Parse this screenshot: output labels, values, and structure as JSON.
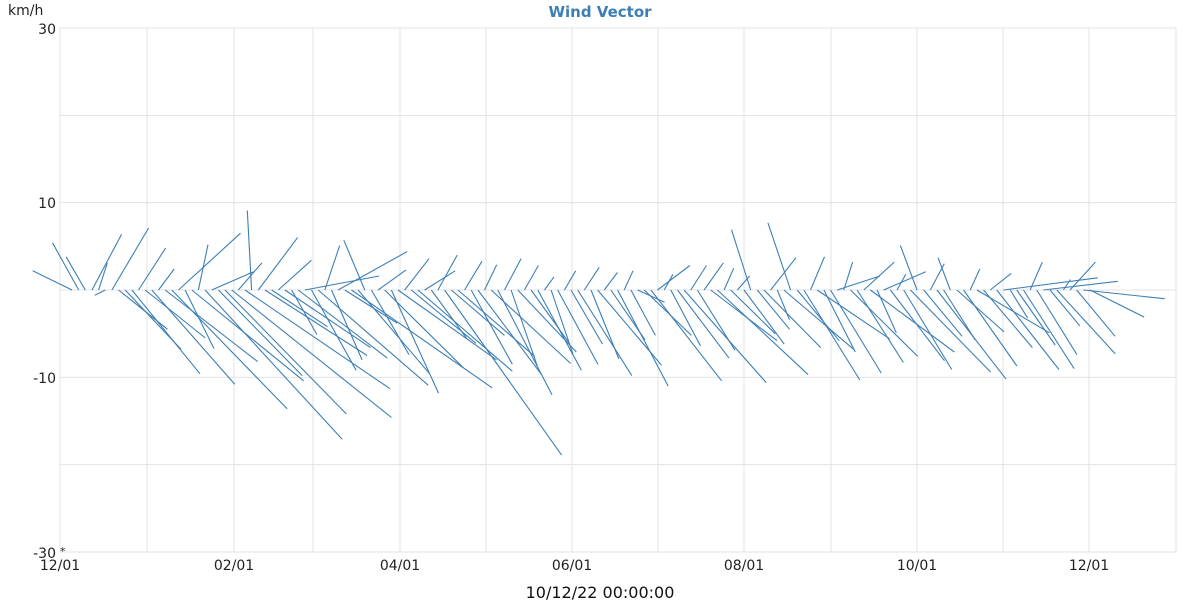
{
  "chart_data": {
    "type": "vector",
    "title": "Wind Vector",
    "ylabel": "km/h",
    "ylim": [
      -30,
      30
    ],
    "y_ticks": [
      "30",
      "10",
      "-10",
      "-30"
    ],
    "x_tick_labels": [
      "12/01",
      "02/01",
      "04/01",
      "06/01",
      "08/01",
      "10/01",
      "12/01"
    ],
    "origin_marker": "*",
    "footer_timestamp": "10/12/22 00:00:00",
    "grid": true,
    "series": [
      {
        "color": "#3d7fb5",
        "vectors": [
          {
            "x": 0,
            "u": -4.5,
            "v": 2.2
          },
          {
            "x": 1,
            "u": -3.0,
            "v": 5.4
          },
          {
            "x": 2,
            "u": -2.2,
            "v": 3.8
          },
          {
            "x": 3,
            "u": 3.4,
            "v": 6.4
          },
          {
            "x": 4,
            "u": 1.0,
            "v": 3.1
          },
          {
            "x": 5,
            "u": -1.2,
            "v": -0.6
          },
          {
            "x": 6,
            "u": 4.2,
            "v": 7.1
          },
          {
            "x": 7,
            "u": 5.6,
            "v": -4.5
          },
          {
            "x": 8,
            "u": 6.4,
            "v": -6.8
          },
          {
            "x": 9,
            "u": 7.8,
            "v": -9.6
          },
          {
            "x": 10,
            "u": 3.1,
            "v": 4.8
          },
          {
            "x": 11,
            "u": 6.9,
            "v": -5.5
          },
          {
            "x": 12,
            "u": 9.5,
            "v": -10.8
          },
          {
            "x": 13,
            "u": 1.8,
            "v": 2.4
          },
          {
            "x": 14,
            "u": 10.6,
            "v": -8.2
          },
          {
            "x": 15,
            "u": 13.2,
            "v": -13.6
          },
          {
            "x": 16,
            "u": 7.1,
            "v": 6.5
          },
          {
            "x": 17,
            "u": 3.3,
            "v": -6.7
          },
          {
            "x": 18,
            "u": 12.8,
            "v": -10.4
          },
          {
            "x": 19,
            "u": 1.1,
            "v": 5.2
          },
          {
            "x": 20,
            "u": 15.7,
            "v": -17.1
          },
          {
            "x": 21,
            "u": 4.8,
            "v": 2.1
          },
          {
            "x": 22,
            "u": 9.6,
            "v": -9.8
          },
          {
            "x": 23,
            "u": 13.9,
            "v": -14.2
          },
          {
            "x": 24,
            "u": 18.3,
            "v": -14.6
          },
          {
            "x": 25,
            "u": 2.7,
            "v": 3.1
          },
          {
            "x": 26,
            "u": 16.6,
            "v": -11.3
          },
          {
            "x": 27,
            "u": -0.5,
            "v": 9.1
          },
          {
            "x": 28,
            "u": 4.5,
            "v": 6.0
          },
          {
            "x": 29,
            "u": 11.7,
            "v": -7.5
          },
          {
            "x": 30,
            "u": 6.4,
            "v": -4.2
          },
          {
            "x": 31,
            "u": 3.8,
            "v": 3.4
          },
          {
            "x": 32,
            "u": 9.8,
            "v": -6.6
          },
          {
            "x": 33,
            "u": 2.9,
            "v": -5.1
          },
          {
            "x": 34,
            "u": 10.2,
            "v": -7.8
          },
          {
            "x": 35,
            "u": 8.5,
            "v": 1.6
          },
          {
            "x": 36,
            "u": 5.1,
            "v": -9.2
          },
          {
            "x": 37,
            "u": 12.6,
            "v": -10.9
          },
          {
            "x": 38,
            "u": 1.7,
            "v": 5.1
          },
          {
            "x": 39,
            "u": 3.5,
            "v": -8.0
          },
          {
            "x": 40,
            "u": 7.9,
            "v": 4.4
          },
          {
            "x": 41,
            "u": 6.0,
            "v": -3.8
          },
          {
            "x": 42,
            "u": 16.1,
            "v": -11.2
          },
          {
            "x": 43,
            "u": 8.2,
            "v": -9.6
          },
          {
            "x": 44,
            "u": -2.4,
            "v": 5.7
          },
          {
            "x": 45,
            "u": 4.3,
            "v": -7.4
          },
          {
            "x": 46,
            "u": 3.2,
            "v": 2.3
          },
          {
            "x": 47,
            "u": 9.0,
            "v": -8.9
          },
          {
            "x": 48,
            "u": 5.4,
            "v": -11.8
          },
          {
            "x": 49,
            "u": 11.3,
            "v": -8.0
          },
          {
            "x": 50,
            "u": 2.8,
            "v": 3.6
          },
          {
            "x": 51,
            "u": 7.4,
            "v": -6.1
          },
          {
            "x": 52,
            "u": 10.8,
            "v": -9.3
          },
          {
            "x": 53,
            "u": 3.5,
            "v": 2.2
          },
          {
            "x": 54,
            "u": 4.1,
            "v": -5.6
          },
          {
            "x": 55,
            "u": 2.2,
            "v": 4.0
          },
          {
            "x": 56,
            "u": 13.4,
            "v": -18.9
          },
          {
            "x": 57,
            "u": 6.1,
            "v": -5.2
          },
          {
            "x": 58,
            "u": 8.8,
            "v": -7.6
          },
          {
            "x": 59,
            "u": 2.0,
            "v": 3.3
          },
          {
            "x": 60,
            "u": 4.7,
            "v": -8.5
          },
          {
            "x": 61,
            "u": 7.3,
            "v": -9.7
          },
          {
            "x": 62,
            "u": 1.4,
            "v": 2.9
          },
          {
            "x": 63,
            "u": 9.1,
            "v": -8.4
          },
          {
            "x": 64,
            "u": 6.2,
            "v": -12.0
          },
          {
            "x": 65,
            "u": 1.9,
            "v": 3.6
          },
          {
            "x": 66,
            "u": 3.0,
            "v": -8.7
          },
          {
            "x": 67,
            "u": 6.7,
            "v": -7.1
          },
          {
            "x": 68,
            "u": 1.6,
            "v": 2.8
          },
          {
            "x": 69,
            "u": 4.3,
            "v": -6.0
          },
          {
            "x": 70,
            "u": 5.0,
            "v": -9.2
          },
          {
            "x": 71,
            "u": 1.1,
            "v": 1.5
          },
          {
            "x": 72,
            "u": 2.5,
            "v": -7.3
          },
          {
            "x": 73,
            "u": 4.6,
            "v": -8.5
          },
          {
            "x": 74,
            "u": 1.3,
            "v": 2.2
          },
          {
            "x": 75,
            "u": 3.6,
            "v": -6.2
          },
          {
            "x": 76,
            "u": 6.2,
            "v": -9.8
          },
          {
            "x": 77,
            "u": 1.7,
            "v": 2.6
          },
          {
            "x": 78,
            "u": 3.2,
            "v": -7.9
          },
          {
            "x": 79,
            "u": 7.3,
            "v": -8.6
          },
          {
            "x": 80,
            "u": 1.5,
            "v": 2.0
          },
          {
            "x": 81,
            "u": 3.9,
            "v": -5.7
          },
          {
            "x": 82,
            "u": 5.8,
            "v": -11.0
          },
          {
            "x": 83,
            "u": 1.0,
            "v": 2.2
          },
          {
            "x": 84,
            "u": 2.8,
            "v": -5.2
          },
          {
            "x": 85,
            "u": 3.1,
            "v": -1.4
          },
          {
            "x": 86,
            "u": 5.4,
            "v": -5.2
          },
          {
            "x": 87,
            "u": 8.1,
            "v": -10.4
          },
          {
            "x": 88,
            "u": 3.7,
            "v": 2.8
          },
          {
            "x": 89,
            "u": 1.0,
            "v": 1.8
          },
          {
            "x": 90,
            "u": 3.4,
            "v": -6.4
          },
          {
            "x": 91,
            "u": 5.9,
            "v": -7.8
          },
          {
            "x": 92,
            "u": 9.4,
            "v": -10.6
          },
          {
            "x": 93,
            "u": 1.8,
            "v": 2.8
          },
          {
            "x": 94,
            "u": 4.3,
            "v": -6.9
          },
          {
            "x": 95,
            "u": 2.2,
            "v": 3.1
          },
          {
            "x": 96,
            "u": 7.6,
            "v": -5.8
          },
          {
            "x": 97,
            "u": 10.4,
            "v": -9.7
          },
          {
            "x": 98,
            "u": 1.1,
            "v": 2.5
          },
          {
            "x": 99,
            "u": 5.1,
            "v": -5.0
          },
          {
            "x": 100,
            "u": 1.4,
            "v": 1.6
          },
          {
            "x": 101,
            "u": 4.6,
            "v": -6.2
          },
          {
            "x": 102,
            "u": -2.2,
            "v": 6.9
          },
          {
            "x": 103,
            "u": 3.7,
            "v": -4.5
          },
          {
            "x": 104,
            "u": 6.5,
            "v": -6.6
          },
          {
            "x": 105,
            "u": 2.9,
            "v": 3.7
          },
          {
            "x": 106,
            "u": 1.4,
            "v": -3.4
          },
          {
            "x": 107,
            "u": 8.0,
            "v": -6.8
          },
          {
            "x": 108,
            "u": -2.6,
            "v": 7.7
          },
          {
            "x": 109,
            "u": 4.8,
            "v": -5.8
          },
          {
            "x": 110,
            "u": 6.4,
            "v": -10.3
          },
          {
            "x": 111,
            "u": 1.6,
            "v": 3.8
          },
          {
            "x": 112,
            "u": 8.3,
            "v": -5.6
          },
          {
            "x": 113,
            "u": 3.6,
            "v": -7.1
          },
          {
            "x": 114,
            "u": 5.8,
            "v": -9.5
          },
          {
            "x": 115,
            "u": 4.9,
            "v": 1.6
          },
          {
            "x": 116,
            "u": 1.0,
            "v": 3.2
          },
          {
            "x": 117,
            "u": 7.7,
            "v": -7.6
          },
          {
            "x": 118,
            "u": 5.3,
            "v": -8.3
          },
          {
            "x": 119,
            "u": 3.5,
            "v": 3.2
          },
          {
            "x": 120,
            "u": 9.6,
            "v": -7.1
          },
          {
            "x": 121,
            "u": 2.2,
            "v": -4.9
          },
          {
            "x": 122,
            "u": 4.8,
            "v": 2.1
          },
          {
            "x": 123,
            "u": 6.2,
            "v": -8.1
          },
          {
            "x": 124,
            "u": 1.0,
            "v": 1.8
          },
          {
            "x": 125,
            "u": 5.5,
            "v": -9.1
          },
          {
            "x": 126,
            "u": 9.2,
            "v": -9.4
          },
          {
            "x": 127,
            "u": -1.9,
            "v": 5.1
          },
          {
            "x": 128,
            "u": 4.4,
            "v": -5.3
          },
          {
            "x": 129,
            "u": 1.6,
            "v": 3.0
          },
          {
            "x": 130,
            "u": 7.9,
            "v": -10.2
          },
          {
            "x": 131,
            "u": 3.6,
            "v": -5.7
          },
          {
            "x": 132,
            "u": -1.4,
            "v": 3.7
          },
          {
            "x": 133,
            "u": 5.4,
            "v": -4.8
          },
          {
            "x": 134,
            "u": 6.1,
            "v": -8.7
          },
          {
            "x": 135,
            "u": 1.1,
            "v": 2.4
          },
          {
            "x": 136,
            "u": 8.3,
            "v": -4.9
          },
          {
            "x": 137,
            "u": 5.6,
            "v": -6.6
          },
          {
            "x": 138,
            "u": 2.4,
            "v": 1.9
          },
          {
            "x": 139,
            "u": 7.1,
            "v": -9.1
          },
          {
            "x": 140,
            "u": 10.8,
            "v": 1.4
          },
          {
            "x": 141,
            "u": 2.0,
            "v": -3.2
          },
          {
            "x": 142,
            "u": 4.4,
            "v": -6.3
          },
          {
            "x": 143,
            "u": 5.8,
            "v": -9.0
          },
          {
            "x": 144,
            "u": 1.4,
            "v": 3.2
          },
          {
            "x": 145,
            "u": 4.6,
            "v": -7.4
          },
          {
            "x": 146,
            "u": 8.5,
            "v": 1.0
          },
          {
            "x": 147,
            "u": 3.4,
            "v": -4.1
          },
          {
            "x": 148,
            "u": 6.7,
            "v": -7.3
          },
          {
            "x": 149,
            "u": 0.8,
            "v": 1.2
          },
          {
            "x": 150,
            "u": 2.9,
            "v": 3.2
          },
          {
            "x": 151,
            "u": 4.4,
            "v": -5.3
          },
          {
            "x": 152,
            "u": 9.3,
            "v": -1.0
          },
          {
            "x": 153,
            "u": 6.2,
            "v": -3.1
          }
        ]
      }
    ]
  }
}
